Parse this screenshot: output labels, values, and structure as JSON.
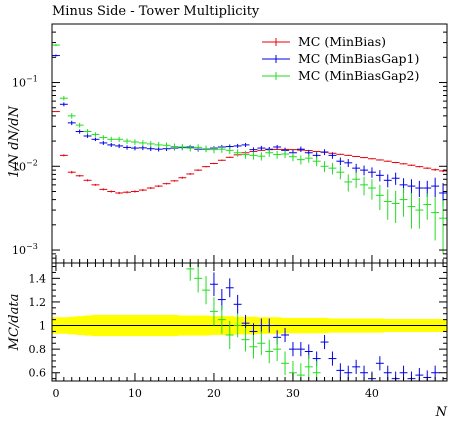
{
  "chart_data": [
    {
      "type": "scatter",
      "title": "Minus Side - Tower Multiplicity",
      "ylabel": "1/N dN/dN",
      "yscale": "log",
      "xlim": [
        -0.5,
        49.5
      ],
      "ylim": [
        0.0007,
        0.5
      ],
      "yticks": [
        {
          "value": 0.001,
          "base": "10",
          "exp": "−3"
        },
        {
          "value": 0.01,
          "base": "10",
          "exp": "−2"
        },
        {
          "value": 0.1,
          "base": "10",
          "exp": "−1"
        }
      ],
      "legend_position": "top-right",
      "series": [
        {
          "name": "MC (MinBias)",
          "color": "#e8000b",
          "errors": [
            0,
            0.0004,
            0.0003,
            0.0002,
            0.0002,
            0.00015,
            0.00015,
            0.00015,
            0.00015,
            0.00015,
            0.00015,
            0.00015,
            0.00015,
            0.00015,
            0.00015,
            0.00015,
            0.0002,
            0.0002,
            0.0002,
            0.0002,
            0.0002,
            0.0002,
            0.0002,
            0.0002,
            0.0002,
            0.0002,
            0.0002,
            0.0002,
            0.0002,
            0.0002,
            0.0002,
            0.0002,
            0.0002,
            0.0002,
            0.0002,
            0.0002,
            0.0002,
            0.0002,
            0.0002,
            0.0002,
            0.0002,
            0.0002,
            0.0002,
            0.0002,
            0.0002,
            0.0002,
            0.0002,
            0.0002,
            0.0003,
            0.0003
          ],
          "values": [
            0.045,
            0.0135,
            0.0085,
            0.0077,
            0.0068,
            0.006,
            0.0053,
            0.005,
            0.0048,
            0.0049,
            0.005,
            0.0052,
            0.0055,
            0.0058,
            0.0062,
            0.0067,
            0.0073,
            0.0081,
            0.009,
            0.0099,
            0.0108,
            0.0118,
            0.0128,
            0.0137,
            0.0145,
            0.015,
            0.0155,
            0.0158,
            0.0159,
            0.0159,
            0.0158,
            0.0156,
            0.0154,
            0.015,
            0.0147,
            0.0143,
            0.0139,
            0.0135,
            0.0131,
            0.0127,
            0.0123,
            0.0119,
            0.0115,
            0.0111,
            0.0107,
            0.0103,
            0.0099,
            0.0095,
            0.0091,
            0.0088
          ]
        },
        {
          "name": "MC (MinBiasGap1)",
          "color": "#0000e0",
          "errors": [
            0.006,
            0.003,
            0.002,
            0.0015,
            0.0012,
            0.001,
            0.001,
            0.001,
            0.001,
            0.001,
            0.001,
            0.001,
            0.001,
            0.001,
            0.001,
            0.001,
            0.001,
            0.001,
            0.001,
            0.001,
            0.001,
            0.001,
            0.001,
            0.001,
            0.001,
            0.001,
            0.001,
            0.001,
            0.001,
            0.0012,
            0.0012,
            0.0012,
            0.0012,
            0.0012,
            0.0012,
            0.0012,
            0.0012,
            0.0012,
            0.0012,
            0.0012,
            0.0012,
            0.0012,
            0.0012,
            0.0012,
            0.0012,
            0.0012,
            0.0012,
            0.0012,
            0.0015,
            0.0015
          ],
          "values": [
            0.21,
            0.055,
            0.033,
            0.026,
            0.023,
            0.021,
            0.019,
            0.018,
            0.0175,
            0.0168,
            0.0165,
            0.0166,
            0.0162,
            0.016,
            0.0162,
            0.0165,
            0.0167,
            0.017,
            0.016,
            0.016,
            0.0165,
            0.017,
            0.0172,
            0.0175,
            0.018,
            0.0158,
            0.0165,
            0.016,
            0.017,
            0.0155,
            0.0145,
            0.016,
            0.0145,
            0.0135,
            0.0148,
            0.0135,
            0.0115,
            0.011,
            0.0095,
            0.009,
            0.0085,
            0.0078,
            0.0068,
            0.0072,
            0.006,
            0.0058,
            0.0055,
            0.0055,
            0.0058,
            0.0048
          ]
        },
        {
          "name": "MC (MinBiasGap2)",
          "color": "#22dd22",
          "errors": [
            0.008,
            0.004,
            0.003,
            0.002,
            0.0018,
            0.0015,
            0.0015,
            0.0015,
            0.0015,
            0.0015,
            0.0015,
            0.0015,
            0.0015,
            0.0015,
            0.0015,
            0.0015,
            0.0015,
            0.0015,
            0.0015,
            0.0015,
            0.0015,
            0.0015,
            0.0015,
            0.0015,
            0.0015,
            0.0015,
            0.0015,
            0.0015,
            0.0015,
            0.0015,
            0.0015,
            0.0015,
            0.0015,
            0.0015,
            0.0015,
            0.0015,
            0.0015,
            0.0015,
            0.0015,
            0.0015,
            0.0015,
            0.0015,
            0.0015,
            0.0015,
            0.0015,
            0.0015,
            0.0012,
            0.0012,
            0.0015,
            0.0015
          ],
          "values": [
            0.28,
            0.065,
            0.04,
            0.031,
            0.026,
            0.024,
            0.022,
            0.021,
            0.021,
            0.02,
            0.0195,
            0.019,
            0.0185,
            0.018,
            0.0178,
            0.0172,
            0.017,
            0.0165,
            0.0168,
            0.0162,
            0.0158,
            0.016,
            0.0155,
            0.0145,
            0.0138,
            0.0135,
            0.0132,
            0.0145,
            0.0138,
            0.014,
            0.013,
            0.012,
            0.0125,
            0.0115,
            0.01,
            0.0095,
            0.0085,
            0.0065,
            0.007,
            0.006,
            0.0055,
            0.0045,
            0.0038,
            0.0036,
            0.004,
            0.0033,
            0.003,
            0.0035,
            0.0028,
            0.0024
          ]
        }
      ]
    },
    {
      "type": "scatter",
      "ylabel": "MC/data",
      "xlabel": "N",
      "xlim": [
        -0.5,
        49.5
      ],
      "ylim": [
        0.53,
        1.53
      ],
      "xticks": [
        0,
        10,
        20,
        30,
        40
      ],
      "yticks": [
        0.6,
        0.8,
        1,
        1.2,
        1.4
      ],
      "band": {
        "color": "#ffff00",
        "halfwidth": [
          0.07,
          0.07,
          0.075,
          0.08,
          0.085,
          0.09,
          0.09,
          0.09,
          0.09,
          0.09,
          0.09,
          0.09,
          0.09,
          0.09,
          0.09,
          0.09,
          0.085,
          0.085,
          0.085,
          0.085,
          0.08,
          0.08,
          0.08,
          0.075,
          0.075,
          0.075,
          0.07,
          0.07,
          0.07,
          0.065,
          0.065,
          0.065,
          0.065,
          0.065,
          0.065,
          0.06,
          0.06,
          0.06,
          0.06,
          0.06,
          0.06,
          0.06,
          0.055,
          0.055,
          0.055,
          0.055,
          0.055,
          0.055,
          0.055,
          0.055
        ]
      },
      "series": [
        {
          "name": "MC (MinBiasGap1)",
          "color": "#0000e0",
          "points": [
            [
              20,
              1.35,
              0.1
            ],
            [
              21,
              1.22,
              0.09
            ],
            [
              22,
              1.32,
              0.08
            ],
            [
              23,
              1.18,
              0.08
            ],
            [
              24,
              1.02,
              0.07
            ],
            [
              25,
              0.95,
              0.07
            ],
            [
              26,
              1.0,
              0.06
            ],
            [
              27,
              1.0,
              0.06
            ],
            [
              28,
              0.9,
              0.06
            ],
            [
              29,
              0.92,
              0.06
            ],
            [
              30,
              0.8,
              0.06
            ],
            [
              31,
              0.8,
              0.06
            ],
            [
              32,
              0.78,
              0.06
            ],
            [
              33,
              0.72,
              0.06
            ],
            [
              34,
              0.86,
              0.06
            ],
            [
              35,
              0.72,
              0.06
            ],
            [
              36,
              0.62,
              0.06
            ],
            [
              37,
              0.6,
              0.06
            ],
            [
              38,
              0.65,
              0.06
            ],
            [
              39,
              0.6,
              0.06
            ],
            [
              40,
              0.55,
              0.06
            ],
            [
              41,
              0.68,
              0.06
            ],
            [
              42,
              0.6,
              0.06
            ],
            [
              43,
              0.55,
              0.06
            ],
            [
              44,
              0.6,
              0.06
            ],
            [
              45,
              0.55,
              0.06
            ],
            [
              46,
              0.58,
              0.06
            ],
            [
              47,
              0.56,
              0.06
            ],
            [
              48,
              0.6,
              0.06
            ]
          ]
        },
        {
          "name": "MC (MinBiasGap2)",
          "color": "#22dd22",
          "points": [
            [
              17,
              1.48,
              0.1
            ],
            [
              18,
              1.4,
              0.12
            ],
            [
              19,
              1.3,
              0.12
            ],
            [
              20,
              1.12,
              0.12
            ],
            [
              21,
              1.05,
              0.12
            ],
            [
              22,
              0.92,
              0.12
            ],
            [
              23,
              1.0,
              0.1
            ],
            [
              24,
              0.88,
              0.1
            ],
            [
              25,
              0.82,
              0.1
            ],
            [
              26,
              0.85,
              0.1
            ],
            [
              27,
              0.78,
              0.1
            ],
            [
              28,
              0.8,
              0.1
            ],
            [
              29,
              0.68,
              0.1
            ],
            [
              30,
              0.6,
              0.1
            ],
            [
              31,
              0.58,
              0.1
            ],
            [
              32,
              0.65,
              0.1
            ],
            [
              33,
              0.6,
              0.1
            ]
          ]
        }
      ]
    }
  ]
}
